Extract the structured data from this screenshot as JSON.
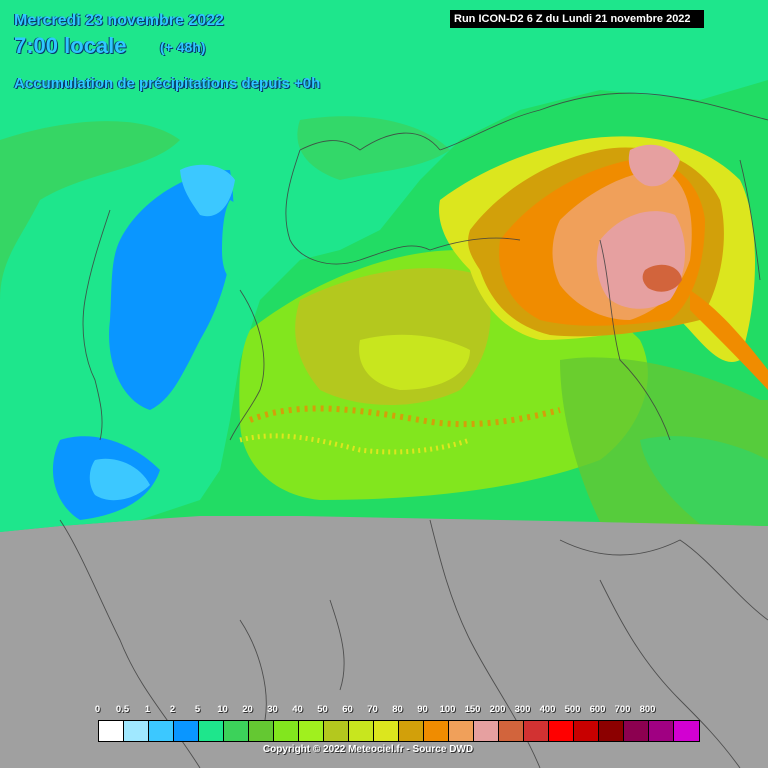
{
  "header": {
    "date": "Mercredi 23 novembre 2022",
    "time": "7:00 locale",
    "offset": "(+ 48h)",
    "title": "Accumulation de précipitations depuis +0h"
  },
  "run_info": "Run ICON-D2 6 Z du Lundi 21 novembre 2022",
  "legend": {
    "labels": [
      "0",
      "0.5",
      "1",
      "2",
      "5",
      "10",
      "20",
      "30",
      "40",
      "50",
      "60",
      "70",
      "80",
      "90",
      "100",
      "150",
      "200",
      "300",
      "400",
      "500",
      "600",
      "700",
      "800"
    ],
    "colors": [
      "#ffffff",
      "#a0e8ff",
      "#3cc8ff",
      "#0a96ff",
      "#1ee68c",
      "#3cd25a",
      "#64c832",
      "#82e61e",
      "#a0f01e",
      "#b4c81e",
      "#c8e61e",
      "#dce61e",
      "#d2a00a",
      "#f08c00",
      "#f0a05a",
      "#e6a0a0",
      "#d2643c",
      "#d23232",
      "#ff0000",
      "#c80000",
      "#8c0000",
      "#8c0050",
      "#a00082",
      "#d200d2"
    ]
  },
  "copyright": "Copyright © 2022 Meteociel.fr - Source DWD"
}
